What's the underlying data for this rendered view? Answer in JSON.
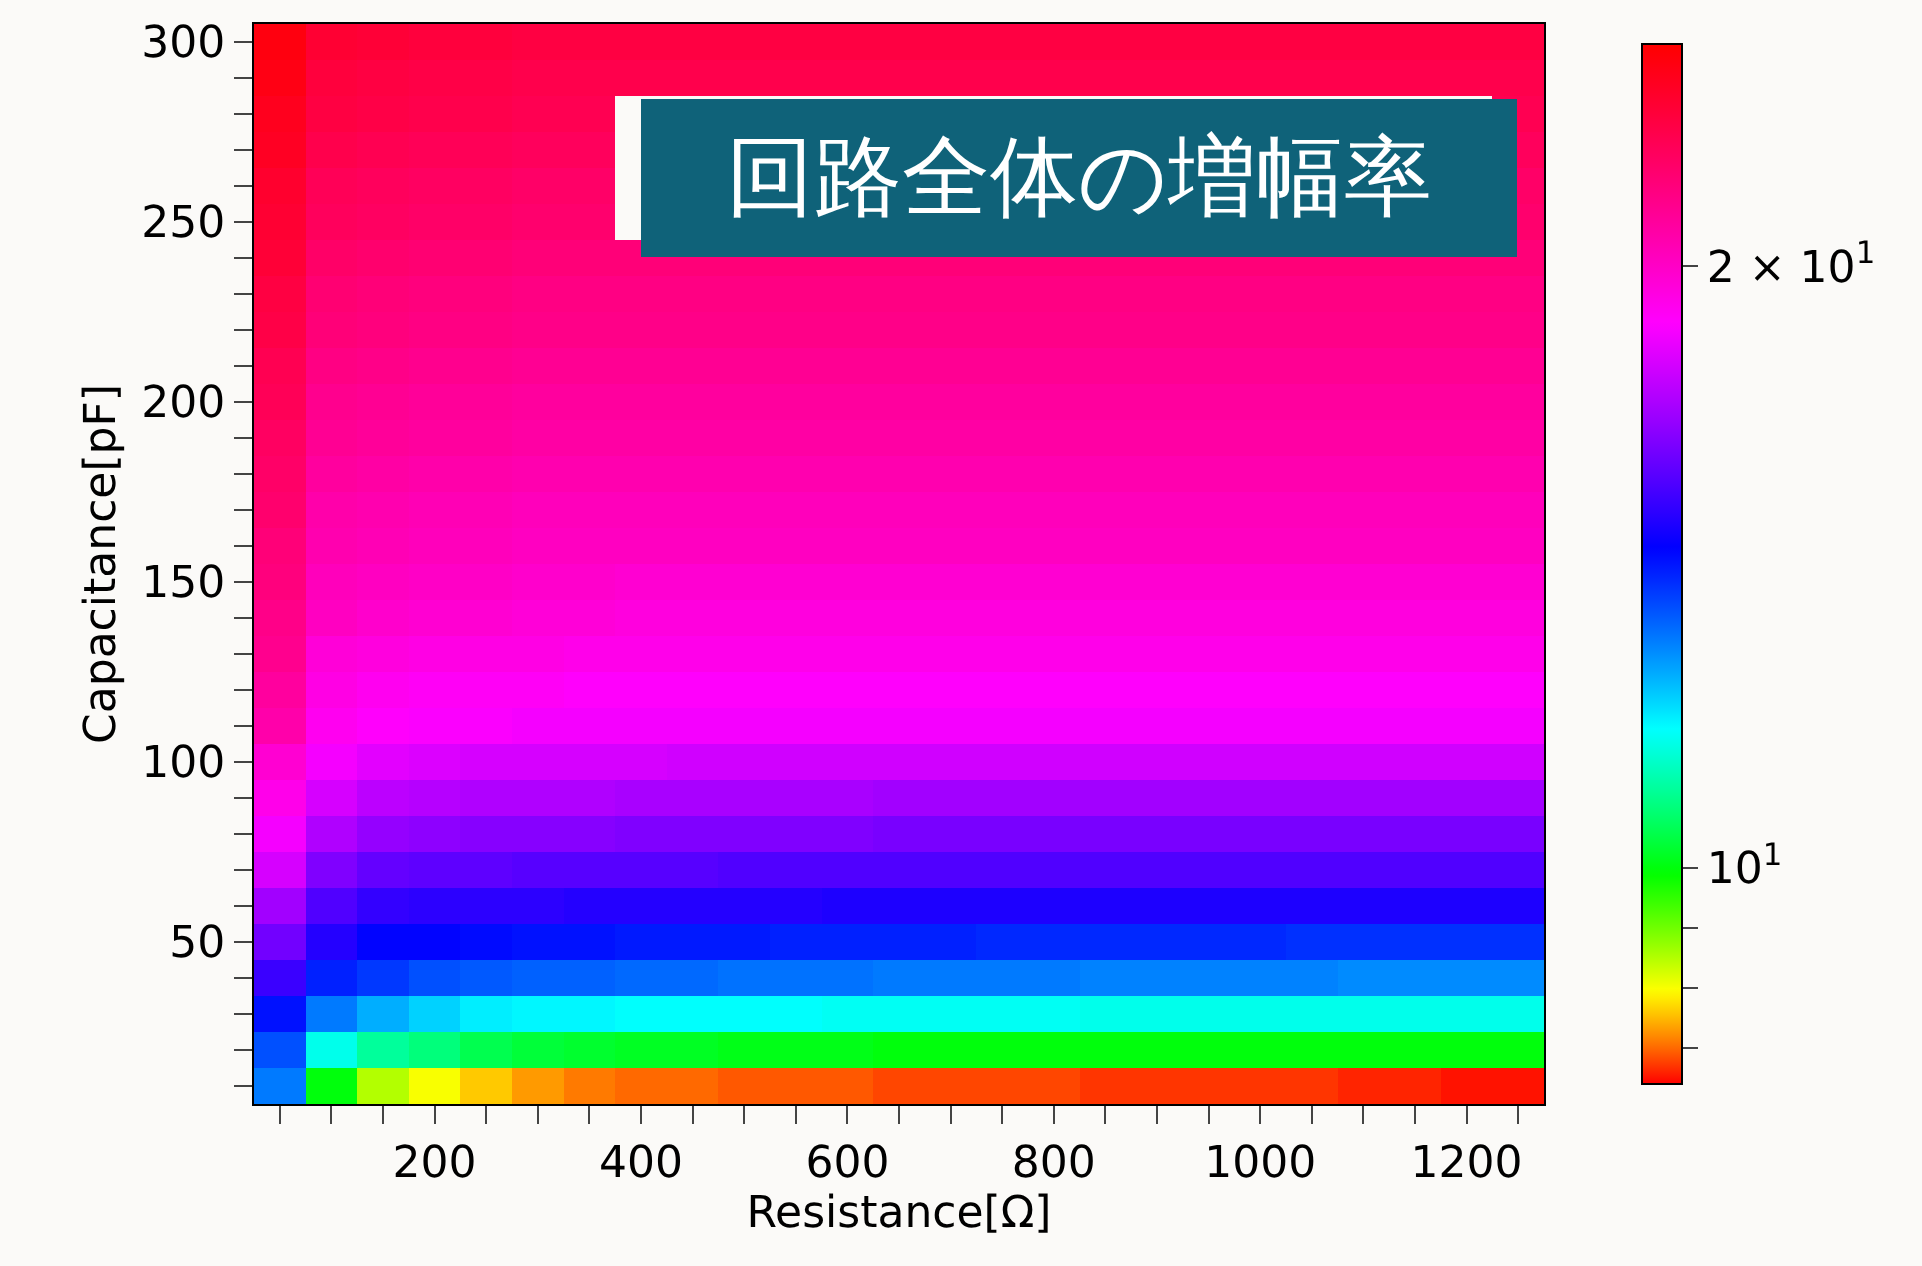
{
  "chart_data": {
    "type": "heatmap",
    "title": "回路全体の増幅率",
    "xlabel": "Resistance[Ω]",
    "ylabel": "Capacitance[pF]",
    "x": [
      50,
      100,
      150,
      200,
      250,
      300,
      350,
      400,
      450,
      500,
      550,
      600,
      650,
      700,
      750,
      800,
      850,
      900,
      950,
      1000,
      1050,
      1100,
      1150,
      1200,
      1250
    ],
    "y_categories": [
      "300",
      null,
      null,
      null,
      null,
      "250",
      null,
      null,
      null,
      null,
      "200",
      null,
      null,
      null,
      null,
      "150",
      null,
      null,
      null,
      null,
      "100",
      null,
      null,
      null,
      null,
      "50",
      null,
      null,
      null,
      null
    ],
    "cells": [
      [
        23.4,
        22.7,
        22.6,
        22.5,
        22.5,
        22.4,
        22.4,
        22.4,
        22.4,
        22.4,
        22.4,
        22.4,
        22.4,
        22.4,
        22.4,
        22.4,
        22.4,
        22.4,
        22.4,
        22.4,
        22.4,
        22.4,
        22.4,
        22.4,
        22.4
      ],
      [
        23.3,
        22.5,
        22.4,
        22.3,
        22.3,
        22.2,
        22.2,
        22.2,
        22.2,
        22.2,
        22.2,
        22.2,
        22.2,
        22.2,
        22.2,
        22.2,
        22.2,
        22.2,
        22.2,
        22.2,
        22.2,
        22.2,
        22.2,
        22.2,
        22.2
      ],
      [
        23.1,
        22.4,
        22.3,
        22.2,
        22.2,
        22.1,
        22.1,
        null,
        null,
        null,
        null,
        null,
        null,
        null,
        null,
        null,
        null,
        null,
        null,
        null,
        null,
        null,
        null,
        null,
        22.1
      ],
      [
        23.0,
        22.2,
        22.1,
        22.0,
        22.0,
        21.9,
        21.9,
        null,
        null,
        null,
        null,
        null,
        null,
        null,
        null,
        null,
        null,
        null,
        null,
        null,
        null,
        null,
        null,
        null,
        21.9
      ],
      [
        22.8,
        22.0,
        21.9,
        21.8,
        21.8,
        21.7,
        21.7,
        null,
        null,
        null,
        null,
        null,
        null,
        null,
        null,
        null,
        null,
        null,
        null,
        null,
        null,
        null,
        null,
        null,
        21.7
      ],
      [
        22.7,
        21.9,
        21.8,
        21.7,
        21.7,
        21.6,
        21.6,
        null,
        null,
        null,
        null,
        null,
        null,
        null,
        null,
        null,
        null,
        null,
        null,
        null,
        null,
        null,
        null,
        null,
        21.6
      ],
      [
        22.6,
        21.7,
        21.6,
        21.5,
        21.5,
        21.4,
        21.4,
        21.4,
        21.4,
        21.4,
        21.4,
        21.4,
        21.4,
        21.4,
        21.4,
        21.4,
        21.4,
        21.4,
        21.4,
        21.4,
        21.4,
        21.4,
        21.4,
        21.4,
        21.4
      ],
      [
        22.4,
        21.5,
        21.4,
        21.3,
        21.3,
        21.2,
        21.2,
        21.2,
        21.2,
        21.2,
        21.2,
        21.2,
        21.2,
        21.2,
        21.2,
        21.2,
        21.2,
        21.2,
        21.2,
        21.2,
        21.2,
        21.2,
        21.2,
        21.2,
        21.2
      ],
      [
        22.3,
        21.4,
        21.3,
        21.2,
        21.2,
        21.1,
        21.1,
        21.1,
        21.1,
        21.1,
        21.1,
        21.1,
        21.1,
        21.1,
        21.1,
        21.1,
        21.1,
        21.1,
        21.1,
        21.1,
        21.1,
        21.1,
        21.1,
        21.1,
        21.1
      ],
      [
        22.1,
        21.2,
        21.1,
        21.0,
        21.0,
        20.9,
        20.9,
        20.9,
        20.9,
        20.9,
        20.9,
        20.9,
        20.9,
        20.9,
        20.9,
        20.9,
        20.9,
        20.9,
        20.9,
        20.9,
        20.9,
        20.9,
        20.9,
        20.9,
        20.9
      ],
      [
        22.0,
        21.0,
        20.9,
        20.8,
        20.8,
        20.7,
        20.7,
        20.7,
        20.7,
        20.7,
        20.7,
        20.7,
        20.7,
        20.7,
        20.7,
        20.7,
        20.7,
        20.7,
        20.7,
        20.7,
        20.7,
        20.7,
        20.7,
        20.7,
        20.7
      ],
      [
        21.8,
        20.9,
        20.8,
        20.7,
        20.7,
        20.6,
        20.6,
        20.6,
        20.6,
        20.6,
        20.6,
        20.6,
        20.6,
        20.6,
        20.6,
        20.6,
        20.6,
        20.6,
        20.6,
        20.6,
        20.6,
        20.6,
        20.6,
        20.6,
        20.6
      ],
      [
        21.7,
        20.7,
        20.6,
        20.5,
        20.5,
        20.4,
        20.4,
        20.4,
        20.4,
        20.4,
        20.4,
        20.4,
        20.4,
        20.4,
        20.4,
        20.4,
        20.4,
        20.4,
        20.4,
        20.4,
        20.4,
        20.4,
        20.4,
        20.4,
        20.4
      ],
      [
        21.6,
        20.5,
        20.4,
        20.3,
        20.3,
        20.2,
        20.2,
        20.2,
        20.2,
        20.2,
        20.2,
        20.2,
        20.2,
        20.2,
        20.2,
        20.2,
        20.2,
        20.2,
        20.2,
        20.2,
        20.2,
        20.2,
        20.2,
        20.2,
        20.2
      ],
      [
        21.4,
        20.4,
        20.3,
        20.2,
        20.2,
        20.1,
        20.1,
        20.1,
        20.1,
        20.1,
        20.1,
        20.1,
        20.1,
        20.1,
        20.1,
        20.1,
        20.1,
        20.1,
        20.1,
        20.1,
        20.1,
        20.1,
        20.1,
        20.1,
        20.1
      ],
      [
        21.3,
        20.2,
        20.1,
        20.0,
        20.0,
        19.9,
        19.9,
        19.8,
        19.8,
        19.8,
        19.8,
        19.8,
        19.8,
        19.8,
        19.8,
        19.8,
        19.8,
        19.8,
        19.8,
        19.8,
        19.8,
        19.8,
        19.8,
        19.8,
        19.8
      ],
      [
        21.1,
        20.1,
        19.9,
        19.8,
        19.8,
        19.7,
        19.7,
        19.6,
        19.6,
        19.6,
        19.6,
        19.6,
        19.6,
        19.6,
        19.6,
        19.6,
        19.6,
        19.6,
        19.6,
        19.6,
        19.6,
        19.6,
        19.6,
        19.6,
        19.6
      ],
      [
        21.0,
        19.7,
        19.6,
        19.5,
        19.5,
        19.5,
        19.4,
        19.4,
        19.4,
        19.4,
        19.4,
        19.4,
        19.4,
        19.4,
        19.4,
        19.4,
        19.4,
        19.4,
        19.4,
        19.4,
        19.4,
        19.4,
        19.4,
        19.4,
        19.4
      ],
      [
        20.7,
        19.5,
        19.3,
        19.2,
        19.2,
        19.2,
        19.1,
        19.1,
        19.1,
        19.1,
        19.1,
        19.1,
        19.1,
        19.1,
        19.1,
        19.1,
        19.1,
        19.1,
        19.1,
        19.1,
        19.1,
        19.1,
        19.1,
        19.1,
        19.1
      ],
      [
        20.5,
        19.3,
        19.1,
        19.0,
        19.0,
        18.9,
        18.9,
        18.9,
        18.9,
        18.9,
        18.9,
        18.9,
        18.9,
        18.9,
        18.9,
        18.9,
        18.9,
        18.9,
        18.9,
        18.9,
        18.9,
        18.9,
        18.9,
        18.9,
        18.9
      ],
      [
        19.8,
        18.9,
        18.6,
        18.5,
        18.4,
        18.4,
        18.4,
        18.4,
        18.3,
        18.3,
        18.3,
        18.3,
        18.3,
        18.3,
        18.3,
        18.3,
        18.3,
        18.3,
        18.3,
        18.3,
        18.3,
        18.3,
        18.3,
        18.3,
        18.3
      ],
      [
        19.4,
        18.4,
        18.0,
        17.9,
        17.8,
        17.8,
        17.8,
        17.7,
        17.7,
        17.7,
        17.7,
        17.7,
        17.6,
        17.6,
        17.6,
        17.6,
        17.6,
        17.6,
        17.6,
        17.6,
        17.6,
        17.6,
        17.6,
        17.6,
        17.6
      ],
      [
        18.9,
        17.8,
        17.4,
        17.3,
        17.2,
        17.2,
        17.2,
        17.1,
        17.1,
        17.1,
        17.1,
        17.1,
        17.0,
        17.0,
        17.0,
        17.0,
        17.0,
        17.0,
        17.0,
        17.0,
        17.0,
        17.0,
        17.0,
        17.0,
        17.0
      ],
      [
        18.4,
        17.1,
        16.7,
        16.6,
        16.6,
        16.5,
        16.5,
        16.5,
        16.5,
        16.4,
        16.4,
        16.4,
        16.4,
        16.4,
        16.4,
        16.4,
        16.4,
        16.4,
        16.4,
        16.4,
        16.4,
        16.4,
        16.4,
        16.4,
        16.4
      ],
      [
        17.6,
        16.4,
        16.0,
        15.9,
        15.9,
        15.9,
        15.8,
        15.8,
        15.8,
        15.8,
        15.8,
        15.7,
        15.7,
        15.7,
        15.7,
        15.7,
        15.7,
        15.7,
        15.7,
        15.7,
        15.7,
        15.7,
        15.7,
        15.7,
        15.7
      ],
      [
        16.9,
        15.8,
        15.3,
        15.3,
        15.2,
        15.1,
        15.1,
        15.0,
        15.0,
        15.0,
        14.9,
        14.9,
        14.9,
        14.9,
        14.8,
        14.8,
        14.8,
        14.8,
        14.8,
        14.8,
        14.7,
        14.7,
        14.7,
        14.7,
        14.7
      ],
      [
        16.1,
        14.9,
        14.6,
        14.3,
        14.2,
        14.1,
        14.1,
        14.0,
        14.0,
        13.9,
        13.9,
        13.9,
        13.8,
        13.8,
        13.8,
        13.8,
        13.7,
        13.7,
        13.7,
        13.7,
        13.7,
        13.6,
        13.6,
        13.6,
        13.6
      ],
      [
        15.1,
        13.8,
        13.2,
        12.8,
        12.5,
        12.4,
        12.4,
        12.3,
        12.3,
        12.3,
        12.3,
        12.2,
        12.2,
        12.2,
        12.2,
        12.2,
        12.1,
        12.1,
        12.1,
        12.1,
        12.1,
        12.1,
        12.1,
        12.1,
        12.1
      ],
      [
        14.3,
        12.1,
        11.3,
        11.0,
        10.6,
        10.4,
        10.3,
        10.2,
        10.2,
        10.1,
        10.1,
        10.1,
        10.0,
        10.0,
        10.0,
        10.0,
        10.0,
        10.0,
        10.0,
        10.0,
        10.0,
        10.0,
        10.0,
        10.0,
        10.0
      ],
      [
        13.8,
        10.0,
        8.5,
        8.0,
        7.6,
        7.3,
        7.1,
        7.0,
        7.0,
        6.9,
        6.9,
        6.9,
        6.8,
        6.8,
        6.8,
        6.8,
        6.7,
        6.7,
        6.7,
        6.7,
        6.7,
        6.6,
        6.6,
        6.5,
        6.5
      ]
    ],
    "xlim": [
      25,
      1275
    ],
    "xticks": [
      {
        "value": 50,
        "label": null
      },
      {
        "value": 100,
        "label": null
      },
      {
        "value": 150,
        "label": null
      },
      200,
      {
        "value": 250,
        "label": null
      },
      {
        "value": 300,
        "label": null
      },
      {
        "value": 350,
        "label": null
      },
      400,
      {
        "value": 450,
        "label": null
      },
      {
        "value": 500,
        "label": null
      },
      {
        "value": 550,
        "label": null
      },
      600,
      {
        "value": 650,
        "label": null
      },
      {
        "value": 700,
        "label": null
      },
      {
        "value": 750,
        "label": null
      },
      800,
      {
        "value": 850,
        "label": null
      },
      {
        "value": 900,
        "label": null
      },
      {
        "value": 950,
        "label": null
      },
      1000,
      {
        "value": 1050,
        "label": null
      },
      {
        "value": 1100,
        "label": null
      },
      {
        "value": 1150,
        "label": null
      },
      1200,
      {
        "value": 1250,
        "label": null
      }
    ],
    "clim": [
      6.4,
      23.7
    ],
    "cticks": [
      {
        "value": 7,
        "label": null
      },
      {
        "value": 8,
        "label": null
      },
      {
        "value": 9,
        "label": null
      },
      {
        "value": 10,
        "label": "10$^{1}$"
      },
      {
        "value": 20,
        "label": "2 × 10$^{1}$"
      }
    ]
  }
}
